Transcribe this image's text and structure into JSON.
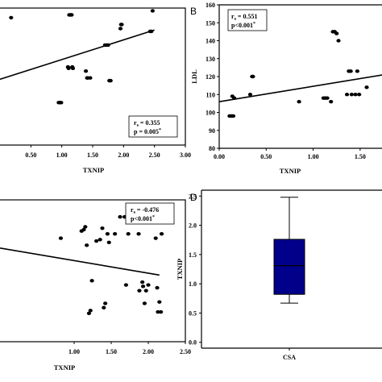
{
  "chart_data": [
    {
      "type": "scatter",
      "panel": "",
      "xlabel": "TXNIP",
      "ylabel": "",
      "xlim": [
        0.0,
        3.0
      ],
      "xticks": [
        "0.50",
        "1.00",
        "1.50",
        "2.00",
        "2.50",
        "3.00"
      ],
      "xtick_values": [
        0.5,
        1.0,
        1.5,
        2.0,
        2.5,
        3.0
      ],
      "x": [
        0.18,
        0.95,
        0.97,
        0.99,
        1.1,
        1.11,
        1.12,
        1.14,
        1.16,
        1.17,
        1.18,
        1.39,
        1.41,
        1.42,
        1.46,
        1.7,
        1.73,
        1.75,
        1.77,
        1.78,
        1.79,
        1.95,
        1.96,
        1.97,
        2.43,
        2.45,
        2.47
      ],
      "y_norm": [
        0.93,
        0.31,
        0.31,
        0.31,
        0.57,
        0.56,
        0.95,
        0.95,
        0.95,
        0.57,
        0.56,
        0.54,
        0.49,
        0.49,
        0.49,
        0.73,
        0.73,
        0.73,
        0.47,
        0.47,
        0.47,
        0.85,
        0.88,
        0.88,
        0.83,
        0.83,
        0.98
      ],
      "fit": {
        "x": [
          0.0,
          2.5
        ],
        "y_norm": [
          0.48,
          0.84
        ]
      },
      "annotation": {
        "r_label": "r",
        "r_sub": "s",
        "r_value": "= 0.355",
        "p_text": "p = 0.005",
        "p_sup": "*"
      }
    },
    {
      "type": "scatter",
      "panel": "B",
      "xlabel": "TXNIP",
      "ylabel": "LDL",
      "xlim": [
        0.0,
        1.75
      ],
      "ylim": [
        80,
        160
      ],
      "xticks": [
        "0.00",
        "0.50",
        "1.00",
        "1.50"
      ],
      "xtick_values": [
        0.0,
        0.5,
        1.0,
        1.5
      ],
      "yticks": [
        "80",
        "90",
        "100",
        "110",
        "120",
        "130",
        "140",
        "150",
        "160"
      ],
      "ytick_values": [
        80,
        90,
        100,
        110,
        120,
        130,
        140,
        150,
        160
      ],
      "x": [
        0.11,
        0.13,
        0.15,
        0.16,
        0.14,
        0.33,
        0.35,
        0.36,
        0.85,
        1.11,
        1.13,
        1.15,
        1.19,
        1.21,
        1.23,
        1.25,
        1.27,
        1.36,
        1.38,
        1.4,
        1.41,
        1.45,
        1.47,
        1.49,
        1.57
      ],
      "y": [
        98,
        98,
        98,
        108,
        109,
        110,
        120,
        120,
        106,
        108,
        108,
        108,
        106,
        145,
        145,
        144,
        140,
        110,
        123,
        123,
        110,
        110,
        123,
        110,
        114
      ],
      "fit": {
        "x": [
          0.0,
          1.75
        ],
        "y": [
          106,
          121
        ]
      },
      "annotation": {
        "r_label": "r",
        "r_sub": "s",
        "r_value": "= 0.551",
        "p_text": "p<0.001",
        "p_sup": "*"
      }
    },
    {
      "type": "scatter",
      "panel": "",
      "xlabel": "TXNIP",
      "ylabel": "",
      "xlim": [
        0.0,
        2.5
      ],
      "xticks": [
        "1.00",
        "1.50",
        "2.00",
        "2.50"
      ],
      "xtick_values": [
        1.0,
        1.5,
        2.0,
        2.5
      ],
      "x": [
        0.82,
        1.1,
        1.13,
        1.15,
        1.17,
        1.2,
        1.22,
        1.24,
        1.3,
        1.35,
        1.38,
        1.4,
        1.42,
        1.45,
        1.47,
        1.55,
        1.62,
        1.68,
        1.7,
        1.73,
        1.87,
        1.88,
        1.92,
        1.93,
        1.95,
        1.97,
        2.0,
        2.1,
        2.12,
        2.13,
        2.15,
        2.17,
        2.18
      ],
      "y_norm": [
        0.73,
        0.78,
        0.79,
        0.81,
        0.68,
        0.2,
        0.22,
        0.43,
        0.71,
        0.72,
        0.8,
        0.24,
        0.27,
        0.76,
        0.7,
        0.76,
        0.88,
        0.88,
        0.4,
        0.76,
        0.76,
        0.36,
        0.42,
        0.39,
        0.27,
        0.36,
        0.4,
        0.73,
        0.38,
        0.21,
        0.28,
        0.21,
        0.76
      ],
      "fit": {
        "x": [
          0.0,
          2.15
        ],
        "y_norm": [
          0.66,
          0.47
        ]
      },
      "annotation": {
        "r_label": "r",
        "r_sub": "s",
        "r_value": "= -0.476",
        "p_text": "p<0.001",
        "p_sup": "*"
      }
    },
    {
      "type": "box",
      "panel": "D",
      "xlabel": "",
      "ylabel": "TXNIP",
      "categories": [
        "CSA"
      ],
      "ylim": [
        -0.1,
        2.6
      ],
      "yticks": [
        "0.0",
        "0.5",
        "1.0",
        "1.5",
        "2.0",
        "2.5"
      ],
      "ytick_values": [
        0.0,
        0.5,
        1.0,
        1.5,
        2.0,
        2.5
      ],
      "box": {
        "min": 0.67,
        "q1": 0.82,
        "median": 1.31,
        "q3": 1.76,
        "max": 2.48
      },
      "box_color": "#00008b"
    }
  ]
}
